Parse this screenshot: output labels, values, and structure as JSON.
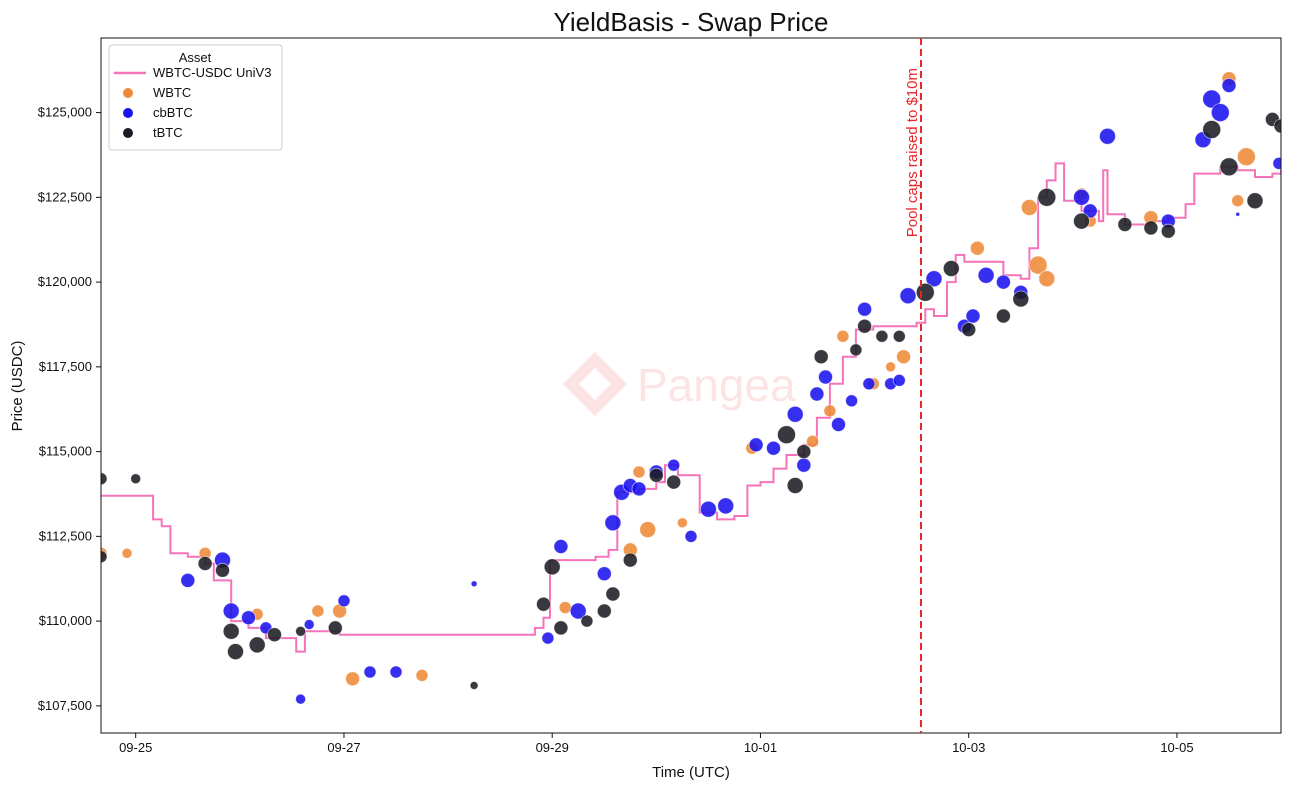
{
  "chart_data": {
    "type": "line+scatter",
    "title": "YieldBasis - Swap Price",
    "xlabel": "Time (UTC)",
    "ylabel": "Price (USDC)",
    "x_domain": [
      "2025-09-24T16:00",
      "2025-10-05T23:59"
    ],
    "ylim": [
      106700,
      127200
    ],
    "x_ticks": [
      {
        "date": "2025-09-25T00:00",
        "label": "09-25"
      },
      {
        "date": "2025-09-27T00:00",
        "label": "09-27"
      },
      {
        "date": "2025-09-29T00:00",
        "label": "09-29"
      },
      {
        "date": "2025-10-01T00:00",
        "label": "10-01"
      },
      {
        "date": "2025-10-03T00:00",
        "label": "10-03"
      },
      {
        "date": "2025-10-05T00:00",
        "label": "10-05"
      }
    ],
    "y_ticks": [
      {
        "value": 107500,
        "label": "$107,500"
      },
      {
        "value": 110000,
        "label": "$110,000"
      },
      {
        "value": 112500,
        "label": "$112,500"
      },
      {
        "value": 115000,
        "label": "$115,000"
      },
      {
        "value": 117500,
        "label": "$117,500"
      },
      {
        "value": 120000,
        "label": "$120,000"
      },
      {
        "value": 122500,
        "label": "$122,500"
      },
      {
        "value": 125000,
        "label": "$125,000"
      }
    ],
    "grid": false,
    "legend": {
      "title": "Asset",
      "placement": "top-left",
      "entries": [
        {
          "label": "WBTC-USDC UniV3",
          "kind": "line",
          "color": "#f473b9"
        },
        {
          "label": "WBTC",
          "kind": "dot",
          "color": "#ee8a37"
        },
        {
          "label": "cbBTC",
          "kind": "dot",
          "color": "#1a12ee"
        },
        {
          "label": "tBTC",
          "kind": "dot",
          "color": "#1c1c24"
        }
      ]
    },
    "annotation": {
      "text": "Pool caps raised to $10m",
      "date": "2025-10-02T13:00",
      "color": "#e8262a"
    },
    "watermark": "Pangea",
    "series": [
      {
        "name": "WBTC-USDC UniV3",
        "kind": "line",
        "color": "#f473b9",
        "points": [
          [
            "2025-09-24T16:00",
            113700
          ],
          [
            "2025-09-25T03:00",
            113700
          ],
          [
            "2025-09-25T04:00",
            113000
          ],
          [
            "2025-09-25T06:00",
            112800
          ],
          [
            "2025-09-25T08:00",
            112000
          ],
          [
            "2025-09-25T12:00",
            111900
          ],
          [
            "2025-09-25T16:00",
            111700
          ],
          [
            "2025-09-25T18:00",
            111200
          ],
          [
            "2025-09-25T22:00",
            110000
          ],
          [
            "2025-09-26T02:00",
            109800
          ],
          [
            "2025-09-26T06:00",
            109500
          ],
          [
            "2025-09-26T10:00",
            109500
          ],
          [
            "2025-09-26T13:00",
            109100
          ],
          [
            "2025-09-26T15:00",
            109700
          ],
          [
            "2025-09-26T19:00",
            109700
          ],
          [
            "2025-09-26T23:00",
            109600
          ],
          [
            "2025-09-27T06:00",
            109600
          ],
          [
            "2025-09-27T12:00",
            109600
          ],
          [
            "2025-09-28T00:00",
            109600
          ],
          [
            "2025-09-28T12:00",
            109600
          ],
          [
            "2025-09-28T20:00",
            109800
          ],
          [
            "2025-09-28T22:00",
            110100
          ],
          [
            "2025-09-28T23:30",
            111800
          ],
          [
            "2025-09-29T04:00",
            111800
          ],
          [
            "2025-09-29T10:00",
            111900
          ],
          [
            "2025-09-29T13:00",
            112100
          ],
          [
            "2025-09-29T15:00",
            113800
          ],
          [
            "2025-09-29T20:00",
            113900
          ],
          [
            "2025-09-30T00:00",
            114100
          ],
          [
            "2025-09-30T02:00",
            114600
          ],
          [
            "2025-09-30T05:00",
            114300
          ],
          [
            "2025-09-30T10:00",
            113200
          ],
          [
            "2025-09-30T14:00",
            113000
          ],
          [
            "2025-09-30T18:00",
            113100
          ],
          [
            "2025-09-30T21:00",
            114000
          ],
          [
            "2025-10-01T00:00",
            114100
          ],
          [
            "2025-10-01T03:00",
            114500
          ],
          [
            "2025-10-01T06:00",
            114900
          ],
          [
            "2025-10-01T10:00",
            115200
          ],
          [
            "2025-10-01T13:00",
            116000
          ],
          [
            "2025-10-01T16:00",
            117000
          ],
          [
            "2025-10-01T19:00",
            117800
          ],
          [
            "2025-10-01T22:00",
            118600
          ],
          [
            "2025-10-02T02:00",
            118700
          ],
          [
            "2025-10-02T08:00",
            118700
          ],
          [
            "2025-10-02T12:00",
            118800
          ],
          [
            "2025-10-02T14:00",
            119200
          ],
          [
            "2025-10-02T16:00",
            119000
          ],
          [
            "2025-10-02T19:00",
            120000
          ],
          [
            "2025-10-02T21:00",
            120800
          ],
          [
            "2025-10-02T23:00",
            120600
          ],
          [
            "2025-10-03T04:00",
            120600
          ],
          [
            "2025-10-03T08:00",
            120200
          ],
          [
            "2025-10-03T12:00",
            120100
          ],
          [
            "2025-10-03T14:00",
            121000
          ],
          [
            "2025-10-03T16:00",
            122500
          ],
          [
            "2025-10-03T18:00",
            123000
          ],
          [
            "2025-10-03T20:00",
            123500
          ],
          [
            "2025-10-03T22:00",
            122400
          ],
          [
            "2025-10-04T02:00",
            122100
          ],
          [
            "2025-10-04T06:00",
            121800
          ],
          [
            "2025-10-04T07:00",
            123300
          ],
          [
            "2025-10-04T08:00",
            122000
          ],
          [
            "2025-10-04T12:00",
            121700
          ],
          [
            "2025-10-04T18:00",
            121800
          ],
          [
            "2025-10-04T22:00",
            121900
          ],
          [
            "2025-10-05T02:00",
            122300
          ],
          [
            "2025-10-05T04:00",
            123200
          ],
          [
            "2025-10-05T08:00",
            123200
          ],
          [
            "2025-10-05T10:00",
            123400
          ],
          [
            "2025-10-05T14:00",
            123300
          ],
          [
            "2025-10-05T18:00",
            123100
          ],
          [
            "2025-10-05T22:00",
            123200
          ],
          [
            "2025-10-05T23:59",
            123300
          ]
        ]
      },
      {
        "name": "WBTC",
        "kind": "scatter",
        "color": "#ee8a37",
        "points": [
          [
            "2025-09-24T16:00",
            112000,
            6
          ],
          [
            "2025-09-24T22:00",
            112000,
            5
          ],
          [
            "2025-09-25T16:00",
            112000,
            6
          ],
          [
            "2025-09-26T04:00",
            110200,
            6
          ],
          [
            "2025-09-26T18:00",
            110300,
            6
          ],
          [
            "2025-09-26T23:00",
            110300,
            7
          ],
          [
            "2025-09-27T02:00",
            108300,
            7
          ],
          [
            "2025-09-27T18:00",
            108400,
            6
          ],
          [
            "2025-09-29T03:00",
            110400,
            6
          ],
          [
            "2025-09-29T18:00",
            112100,
            7
          ],
          [
            "2025-09-29T22:00",
            112700,
            8
          ],
          [
            "2025-09-29T20:00",
            114400,
            6
          ],
          [
            "2025-09-30T06:00",
            112900,
            5
          ],
          [
            "2025-09-30T22:00",
            115100,
            6
          ],
          [
            "2025-10-01T12:00",
            115300,
            6
          ],
          [
            "2025-10-01T16:00",
            116200,
            6
          ],
          [
            "2025-10-01T19:00",
            118400,
            6
          ],
          [
            "2025-10-02T02:00",
            117000,
            6
          ],
          [
            "2025-10-02T06:00",
            117500,
            5
          ],
          [
            "2025-10-02T09:00",
            117800,
            7
          ],
          [
            "2025-10-03T02:00",
            121000,
            7
          ],
          [
            "2025-10-03T14:00",
            122200,
            8
          ],
          [
            "2025-10-03T16:00",
            120500,
            9
          ],
          [
            "2025-10-03T18:00",
            120100,
            8
          ],
          [
            "2025-10-04T02:00",
            122600,
            6
          ],
          [
            "2025-10-04T04:00",
            121800,
            6
          ],
          [
            "2025-10-04T18:00",
            121900,
            7
          ],
          [
            "2025-10-05T12:00",
            126000,
            7
          ],
          [
            "2025-10-05T16:00",
            123700,
            9
          ],
          [
            "2025-10-05T14:00",
            122400,
            6
          ]
        ]
      },
      {
        "name": "cbBTC",
        "kind": "scatter",
        "color": "#1a12ee",
        "points": [
          [
            "2025-09-25T12:00",
            111200,
            7
          ],
          [
            "2025-09-25T20:00",
            111800,
            8
          ],
          [
            "2025-09-25T22:00",
            110300,
            8
          ],
          [
            "2025-09-26T02:00",
            110100,
            7
          ],
          [
            "2025-09-26T06:00",
            109800,
            6
          ],
          [
            "2025-09-26T14:00",
            107700,
            5
          ],
          [
            "2025-09-26T16:00",
            109900,
            5
          ],
          [
            "2025-09-27T00:00",
            110600,
            6
          ],
          [
            "2025-09-27T06:00",
            108500,
            6
          ],
          [
            "2025-09-27T12:00",
            108500,
            6
          ],
          [
            "2025-09-28T06:00",
            111100,
            3
          ],
          [
            "2025-09-28T23:00",
            109500,
            6
          ],
          [
            "2025-09-29T02:00",
            112200,
            7
          ],
          [
            "2025-09-29T06:00",
            110300,
            8
          ],
          [
            "2025-09-29T12:00",
            111400,
            7
          ],
          [
            "2025-09-29T14:00",
            112900,
            8
          ],
          [
            "2025-09-29T16:00",
            113800,
            8
          ],
          [
            "2025-09-29T18:00",
            114000,
            7
          ],
          [
            "2025-09-29T20:00",
            113900,
            7
          ],
          [
            "2025-09-30T00:00",
            114400,
            7
          ],
          [
            "2025-09-30T04:00",
            114600,
            6
          ],
          [
            "2025-09-30T08:00",
            112500,
            6
          ],
          [
            "2025-09-30T12:00",
            113300,
            8
          ],
          [
            "2025-09-30T16:00",
            113400,
            8
          ],
          [
            "2025-09-30T23:00",
            115200,
            7
          ],
          [
            "2025-10-01T03:00",
            115100,
            7
          ],
          [
            "2025-10-01T08:00",
            116100,
            8
          ],
          [
            "2025-10-01T10:00",
            114600,
            7
          ],
          [
            "2025-10-01T13:00",
            116700,
            7
          ],
          [
            "2025-10-01T15:00",
            117200,
            7
          ],
          [
            "2025-10-01T18:00",
            115800,
            7
          ],
          [
            "2025-10-01T21:00",
            116500,
            6
          ],
          [
            "2025-10-02T00:00",
            119200,
            7
          ],
          [
            "2025-10-02T01:00",
            117000,
            6
          ],
          [
            "2025-10-02T06:00",
            117000,
            6
          ],
          [
            "2025-10-02T08:00",
            117100,
            6
          ],
          [
            "2025-10-02T10:00",
            119600,
            8
          ],
          [
            "2025-10-02T16:00",
            120100,
            8
          ],
          [
            "2025-10-02T23:00",
            118700,
            7
          ],
          [
            "2025-10-03T01:00",
            119000,
            7
          ],
          [
            "2025-10-03T04:00",
            120200,
            8
          ],
          [
            "2025-10-03T08:00",
            120000,
            7
          ],
          [
            "2025-10-03T12:00",
            119700,
            7
          ],
          [
            "2025-10-04T02:00",
            122500,
            8
          ],
          [
            "2025-10-04T04:00",
            122100,
            7
          ],
          [
            "2025-10-04T08:00",
            124300,
            8
          ],
          [
            "2025-10-04T22:00",
            121800,
            7
          ],
          [
            "2025-10-05T06:00",
            124200,
            8
          ],
          [
            "2025-10-05T08:00",
            125400,
            9
          ],
          [
            "2025-10-05T10:00",
            125000,
            9
          ],
          [
            "2025-10-05T12:00",
            125800,
            7
          ],
          [
            "2025-10-05T14:00",
            122000,
            2
          ],
          [
            "2025-10-05T23:30",
            123500,
            6
          ]
        ]
      },
      {
        "name": "tBTC",
        "kind": "scatter",
        "color": "#1c1c24",
        "points": [
          [
            "2025-09-24T16:00",
            114200,
            6
          ],
          [
            "2025-09-24T16:00",
            111900,
            6
          ],
          [
            "2025-09-25T00:00",
            114200,
            5
          ],
          [
            "2025-09-25T16:00",
            111700,
            7
          ],
          [
            "2025-09-25T20:00",
            111500,
            7
          ],
          [
            "2025-09-25T22:00",
            109700,
            8
          ],
          [
            "2025-09-25T23:00",
            109100,
            8
          ],
          [
            "2025-09-26T04:00",
            109300,
            8
          ],
          [
            "2025-09-26T08:00",
            109600,
            7
          ],
          [
            "2025-09-26T14:00",
            109700,
            5
          ],
          [
            "2025-09-26T22:00",
            109800,
            7
          ],
          [
            "2025-09-28T06:00",
            108100,
            4
          ],
          [
            "2025-09-28T22:00",
            110500,
            7
          ],
          [
            "2025-09-29T00:00",
            111600,
            8
          ],
          [
            "2025-09-29T02:00",
            109800,
            7
          ],
          [
            "2025-09-29T08:00",
            110000,
            6
          ],
          [
            "2025-09-29T12:00",
            110300,
            7
          ],
          [
            "2025-09-29T14:00",
            110800,
            7
          ],
          [
            "2025-09-29T18:00",
            111800,
            7
          ],
          [
            "2025-09-30T00:00",
            114300,
            7
          ],
          [
            "2025-09-30T04:00",
            114100,
            7
          ],
          [
            "2025-10-01T06:00",
            115500,
            9
          ],
          [
            "2025-10-01T08:00",
            114000,
            8
          ],
          [
            "2025-10-01T10:00",
            115000,
            7
          ],
          [
            "2025-10-01T14:00",
            117800,
            7
          ],
          [
            "2025-10-01T22:00",
            118000,
            6
          ],
          [
            "2025-10-02T00:00",
            118700,
            7
          ],
          [
            "2025-10-02T04:00",
            118400,
            6
          ],
          [
            "2025-10-02T08:00",
            118400,
            6
          ],
          [
            "2025-10-02T14:00",
            119700,
            9
          ],
          [
            "2025-10-02T20:00",
            120400,
            8
          ],
          [
            "2025-10-03T00:00",
            118600,
            7
          ],
          [
            "2025-10-03T08:00",
            119000,
            7
          ],
          [
            "2025-10-03T12:00",
            119500,
            8
          ],
          [
            "2025-10-03T18:00",
            122500,
            9
          ],
          [
            "2025-10-04T02:00",
            121800,
            8
          ],
          [
            "2025-10-04T12:00",
            121700,
            7
          ],
          [
            "2025-10-04T18:00",
            121600,
            7
          ],
          [
            "2025-10-04T22:00",
            121500,
            7
          ],
          [
            "2025-10-05T08:00",
            124500,
            9
          ],
          [
            "2025-10-05T12:00",
            123400,
            9
          ],
          [
            "2025-10-05T18:00",
            122400,
            8
          ],
          [
            "2025-10-05T22:00",
            124800,
            7
          ],
          [
            "2025-10-05T23:59",
            124600,
            7
          ]
        ]
      }
    ]
  }
}
